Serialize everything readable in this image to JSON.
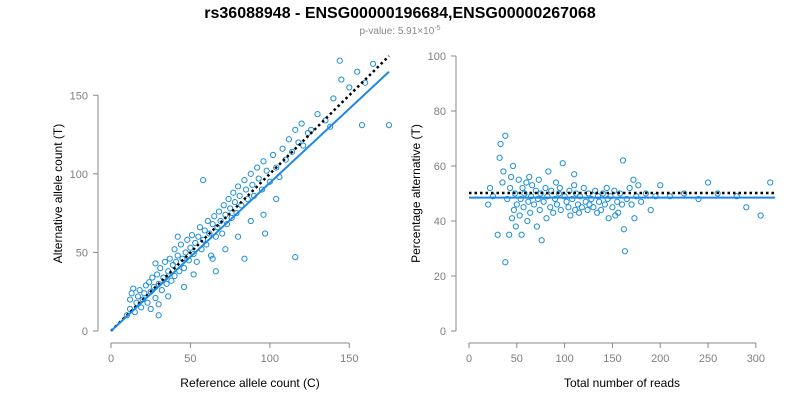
{
  "title": "rs36088948 - ENSG00000196684,ENSG00000267068",
  "subtitle": {
    "text": "p-value: 5.91×10",
    "exponent": "-5"
  },
  "colors": {
    "points": "#1f8fd6",
    "fit": "#1e88e5",
    "reference": "#000000",
    "axis": "#888888",
    "ticks": "#7f7f7f"
  },
  "chart_data": [
    {
      "type": "scatter",
      "id": "left",
      "xlabel": "Reference allele count (C)",
      "ylabel": "Alternative allele count (T)",
      "xlim": [
        0,
        175
      ],
      "ylim": [
        0,
        175
      ],
      "xticks": [
        0,
        50,
        100,
        150
      ],
      "yticks": [
        0,
        50,
        100,
        150
      ],
      "fit_line": {
        "x": [
          0,
          175
        ],
        "y": [
          0,
          165
        ]
      },
      "reference_line": {
        "x": [
          0,
          175
        ],
        "y": [
          0,
          175
        ]
      },
      "points": [
        [
          10,
          10
        ],
        [
          12,
          14
        ],
        [
          12,
          20
        ],
        [
          13,
          24
        ],
        [
          14,
          27
        ],
        [
          15,
          12
        ],
        [
          16,
          18
        ],
        [
          17,
          22
        ],
        [
          18,
          26
        ],
        [
          19,
          15
        ],
        [
          20,
          20
        ],
        [
          21,
          24
        ],
        [
          22,
          29
        ],
        [
          23,
          18
        ],
        [
          24,
          31
        ],
        [
          25,
          25
        ],
        [
          26,
          34
        ],
        [
          27,
          28
        ],
        [
          28,
          21
        ],
        [
          29,
          36
        ],
        [
          30,
          30
        ],
        [
          30,
          17
        ],
        [
          31,
          40
        ],
        [
          32,
          26
        ],
        [
          33,
          34
        ],
        [
          34,
          44
        ],
        [
          35,
          30
        ],
        [
          36,
          38
        ],
        [
          37,
          46
        ],
        [
          38,
          32
        ],
        [
          39,
          42
        ],
        [
          40,
          52
        ],
        [
          40,
          35
        ],
        [
          41,
          44
        ],
        [
          42,
          48
        ],
        [
          43,
          38
        ],
        [
          44,
          55
        ],
        [
          45,
          46
        ],
        [
          46,
          40
        ],
        [
          47,
          50
        ],
        [
          48,
          58
        ],
        [
          49,
          45
        ],
        [
          50,
          53
        ],
        [
          51,
          61
        ],
        [
          52,
          49
        ],
        [
          53,
          56
        ],
        [
          54,
          44
        ],
        [
          55,
          60
        ],
        [
          56,
          66
        ],
        [
          57,
          52
        ],
        [
          58,
          58
        ],
        [
          59,
          64
        ],
        [
          60,
          55
        ],
        [
          61,
          70
        ],
        [
          62,
          62
        ],
        [
          63,
          48
        ],
        [
          64,
          68
        ],
        [
          65,
          73
        ],
        [
          66,
          60
        ],
        [
          67,
          66
        ],
        [
          68,
          76
        ],
        [
          69,
          70
        ],
        [
          70,
          62
        ],
        [
          71,
          80
        ],
        [
          72,
          74
        ],
        [
          73,
          68
        ],
        [
          74,
          84
        ],
        [
          75,
          78
        ],
        [
          76,
          72
        ],
        [
          77,
          88
        ],
        [
          78,
          82
        ],
        [
          79,
          75
        ],
        [
          80,
          92
        ],
        [
          81,
          86
        ],
        [
          82,
          80
        ],
        [
          84,
          96
        ],
        [
          85,
          90
        ],
        [
          86,
          84
        ],
        [
          88,
          100
        ],
        [
          89,
          93
        ],
        [
          90,
          86
        ],
        [
          92,
          104
        ],
        [
          93,
          97
        ],
        [
          95,
          90
        ],
        [
          96,
          108
        ],
        [
          98,
          102
        ],
        [
          100,
          95
        ],
        [
          102,
          112
        ],
        [
          104,
          104
        ],
        [
          106,
          98
        ],
        [
          108,
          116
        ],
        [
          110,
          109
        ],
        [
          112,
          122
        ],
        [
          114,
          114
        ],
        [
          116,
          128
        ],
        [
          118,
          120
        ],
        [
          120,
          132
        ],
        [
          124,
          126
        ],
        [
          130,
          138
        ],
        [
          135,
          134
        ],
        [
          140,
          148
        ],
        [
          145,
          160
        ],
        [
          150,
          155
        ],
        [
          155,
          165
        ],
        [
          160,
          158
        ],
        [
          165,
          170
        ],
        [
          25,
          14
        ],
        [
          42,
          60
        ],
        [
          58,
          96
        ],
        [
          66,
          38
        ],
        [
          84,
          46
        ],
        [
          97,
          62
        ],
        [
          116,
          47
        ],
        [
          121,
          118
        ],
        [
          126,
          128
        ],
        [
          138,
          130
        ],
        [
          144,
          172
        ],
        [
          158,
          131
        ],
        [
          175,
          131
        ],
        [
          30,
          10
        ],
        [
          28,
          43
        ],
        [
          36,
          22
        ],
        [
          46,
          28
        ],
        [
          52,
          36
        ],
        [
          64,
          46
        ],
        [
          72,
          52
        ],
        [
          80,
          60
        ],
        [
          88,
          70
        ],
        [
          96,
          74
        ],
        [
          104,
          84
        ]
      ]
    },
    {
      "type": "scatter",
      "id": "right",
      "xlabel": "Total number of reads",
      "ylabel": "Percentage alternative (T)",
      "xlim": [
        0,
        320
      ],
      "ylim": [
        0,
        100
      ],
      "xticks": [
        0,
        50,
        100,
        150,
        200,
        250,
        300
      ],
      "yticks": [
        0,
        20,
        40,
        60,
        80,
        100
      ],
      "fit_line": {
        "x": [
          0,
          320
        ],
        "y": [
          48.5,
          48.5
        ]
      },
      "reference_line": {
        "x": [
          0,
          320
        ],
        "y": [
          50.2,
          50.2
        ]
      },
      "points": [
        [
          20,
          46
        ],
        [
          22,
          52
        ],
        [
          25,
          49
        ],
        [
          30,
          35
        ],
        [
          32,
          63
        ],
        [
          33,
          68
        ],
        [
          35,
          54
        ],
        [
          36,
          58
        ],
        [
          38,
          71
        ],
        [
          38,
          25
        ],
        [
          40,
          48
        ],
        [
          42,
          35
        ],
        [
          43,
          52
        ],
        [
          44,
          56
        ],
        [
          45,
          41
        ],
        [
          46,
          60
        ],
        [
          47,
          44
        ],
        [
          48,
          50
        ],
        [
          49,
          38
        ],
        [
          50,
          46
        ],
        [
          52,
          55
        ],
        [
          53,
          42
        ],
        [
          54,
          48
        ],
        [
          55,
          35
        ],
        [
          56,
          52
        ],
        [
          57,
          45
        ],
        [
          58,
          50
        ],
        [
          60,
          54
        ],
        [
          61,
          40
        ],
        [
          62,
          47
        ],
        [
          63,
          56
        ],
        [
          64,
          43
        ],
        [
          65,
          49
        ],
        [
          66,
          53
        ],
        [
          68,
          46
        ],
        [
          70,
          51
        ],
        [
          71,
          38
        ],
        [
          72,
          48
        ],
        [
          73,
          55
        ],
        [
          74,
          44
        ],
        [
          75,
          50
        ],
        [
          76,
          33
        ],
        [
          78,
          47
        ],
        [
          80,
          52
        ],
        [
          81,
          41
        ],
        [
          82,
          49
        ],
        [
          83,
          58
        ],
        [
          85,
          45
        ],
        [
          86,
          51
        ],
        [
          88,
          43
        ],
        [
          90,
          48
        ],
        [
          91,
          54
        ],
        [
          92,
          46
        ],
        [
          94,
          50
        ],
        [
          95,
          52
        ],
        [
          96,
          44
        ],
        [
          98,
          61
        ],
        [
          100,
          49
        ],
        [
          102,
          47
        ],
        [
          104,
          45
        ],
        [
          105,
          51
        ],
        [
          106,
          42
        ],
        [
          108,
          48
        ],
        [
          110,
          53
        ],
        [
          111,
          44
        ],
        [
          112,
          50
        ],
        [
          114,
          46
        ],
        [
          115,
          43
        ],
        [
          116,
          49
        ],
        [
          118,
          45
        ],
        [
          120,
          52
        ],
        [
          122,
          47
        ],
        [
          124,
          44
        ],
        [
          125,
          50
        ],
        [
          126,
          46
        ],
        [
          128,
          48
        ],
        [
          130,
          45
        ],
        [
          132,
          51
        ],
        [
          134,
          43
        ],
        [
          135,
          49
        ],
        [
          136,
          47
        ],
        [
          138,
          44
        ],
        [
          140,
          50
        ],
        [
          142,
          46
        ],
        [
          144,
          52
        ],
        [
          145,
          48
        ],
        [
          146,
          41
        ],
        [
          148,
          49
        ],
        [
          150,
          45
        ],
        [
          152,
          51
        ],
        [
          153,
          42
        ],
        [
          155,
          47
        ],
        [
          156,
          43
        ],
        [
          158,
          50
        ],
        [
          160,
          46
        ],
        [
          161,
          62
        ],
        [
          162,
          37
        ],
        [
          163,
          29
        ],
        [
          165,
          48
        ],
        [
          168,
          52
        ],
        [
          170,
          46
        ],
        [
          172,
          55
        ],
        [
          173,
          41
        ],
        [
          175,
          49
        ],
        [
          177,
          53
        ],
        [
          180,
          47
        ],
        [
          185,
          50
        ],
        [
          190,
          44
        ],
        [
          195,
          49
        ],
        [
          200,
          53
        ],
        [
          210,
          49
        ],
        [
          225,
          50
        ],
        [
          240,
          48
        ],
        [
          250,
          54
        ],
        [
          260,
          50
        ],
        [
          280,
          49
        ],
        [
          290,
          45
        ],
        [
          305,
          42
        ],
        [
          315,
          54
        ],
        [
          110,
          57
        ]
      ]
    }
  ]
}
